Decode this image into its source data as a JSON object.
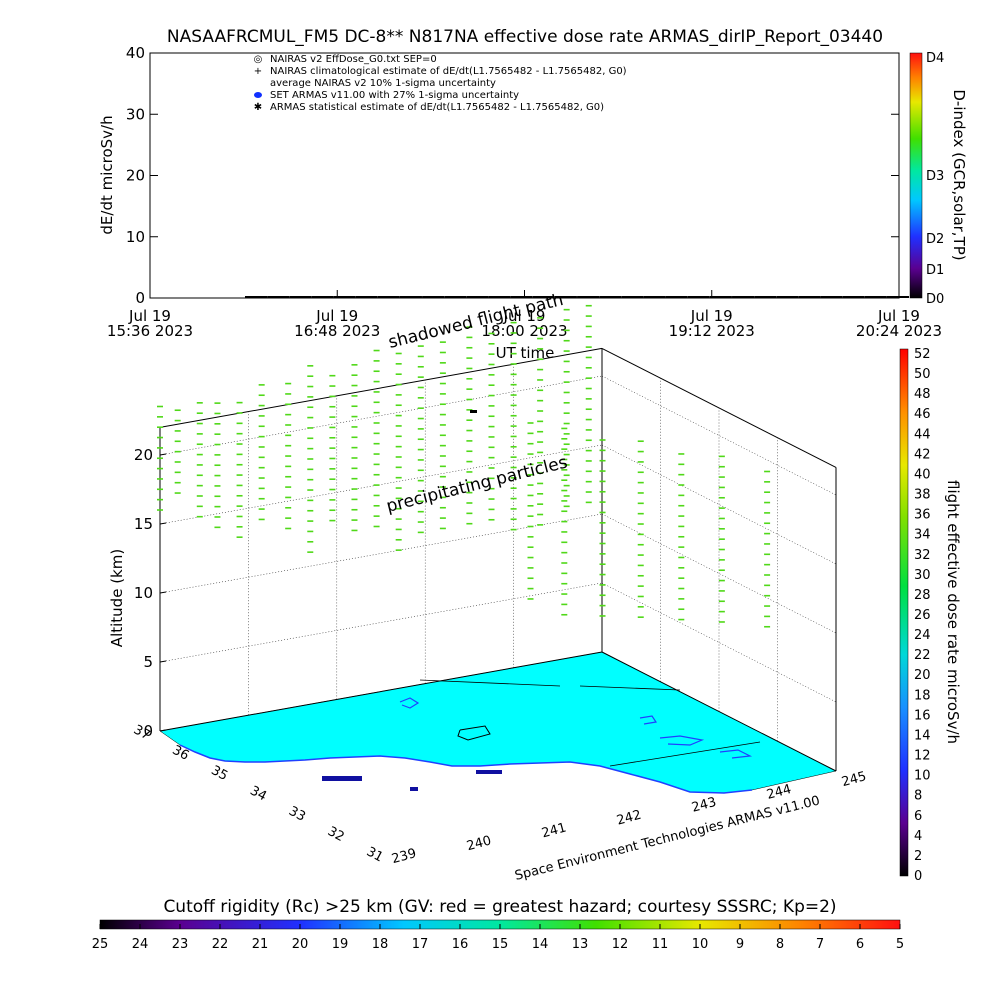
{
  "chart_data": [
    {
      "type": "line",
      "title": "NASAAFRCMUL_FM5 DC-8** N817NA effective dose rate ARMAS_dirIP_Report_03440",
      "ylabel": "dE/dt microSv/h",
      "xlabel": "UT time",
      "ylim": [
        0,
        40
      ],
      "y_ticks": [
        "0",
        "10",
        "20",
        "30",
        "40"
      ],
      "x_ticks": [
        {
          "date": "Jul 19",
          "time": "15:36 2023"
        },
        {
          "date": "Jul 19",
          "time": "16:48 2023"
        },
        {
          "date": "Jul 19",
          "time": "18:00 2023"
        },
        {
          "date": "Jul 19",
          "time": "19:12 2023"
        },
        {
          "date": "Jul 19",
          "time": "20:24 2023"
        }
      ],
      "legend": [
        "NAIRAS v2 EffDose_G0.txt SEP=0",
        "NAIRAS climatological estimate of dE/dt(L1.7565482 - L1.7565482, G0)",
        "average NAIRAS v2 10% 1-sigma uncertainty",
        "SET ARMAS v11.00 with 27% 1-sigma uncertainty",
        "ARMAS statistical estimate of dE/dt(L1.7565482 - L1.7565482, G0)"
      ],
      "legend_symbols": [
        "◎",
        "+",
        "",
        "●",
        "✱"
      ],
      "series": [
        {
          "values": [
            0,
            0,
            0,
            0,
            0,
            0,
            0,
            0,
            0,
            0,
            0,
            0,
            0,
            0,
            0,
            0,
            0,
            0,
            0,
            0,
            0,
            0,
            0,
            0,
            0,
            0,
            0,
            0,
            0,
            0
          ]
        }
      ],
      "colorbar": {
        "label": "D-index (GCR,solar,TP)",
        "ticks": [
          "D0",
          "D1",
          "D2",
          "D3",
          "D4"
        ]
      }
    },
    {
      "type": "scatter",
      "ylabel": "Altitude (km)",
      "z_ticks": [
        "0",
        "5",
        "10",
        "15",
        "20"
      ],
      "depth_ticks": [
        "31",
        "32",
        "33",
        "34",
        "35",
        "36",
        "37"
      ],
      "x_ticks": [
        "239",
        "240",
        "241",
        "242",
        "243",
        "244",
        "245"
      ],
      "annotations": [
        "shadowed flight path",
        "precipitating particles"
      ],
      "credit": "Space Environment Technologies ARMAS v11.00",
      "colorbar": {
        "label": "flight effective dose rate microSv/h",
        "ticks": [
          "0",
          "2",
          "4",
          "6",
          "8",
          "10",
          "12",
          "14",
          "16",
          "18",
          "20",
          "22",
          "24",
          "26",
          "28",
          "30",
          "32",
          "34",
          "36",
          "38",
          "40",
          "42",
          "44",
          "46",
          "48",
          "50",
          "52"
        ]
      },
      "precipitation_columns": [
        {
          "t": 0.0,
          "d": 0.0,
          "z0": 16,
          "z1": 23.5
        },
        {
          "t": 0.04,
          "d": 0.0,
          "z0": 17,
          "z1": 23.5
        },
        {
          "t": 0.09,
          "d": 0.0,
          "z0": 15,
          "z1": 23.5
        },
        {
          "t": 0.13,
          "d": 0.0,
          "z0": 14,
          "z1": 23
        },
        {
          "t": 0.18,
          "d": 0.0,
          "z0": 13,
          "z1": 23
        },
        {
          "t": 0.23,
          "d": 0.0,
          "z0": 14,
          "z1": 24
        },
        {
          "t": 0.29,
          "d": 0.0,
          "z0": 13,
          "z1": 24
        },
        {
          "t": 0.34,
          "d": 0.0,
          "z0": 11,
          "z1": 24.5
        },
        {
          "t": 0.39,
          "d": 0.0,
          "z0": 13,
          "z1": 24
        },
        {
          "t": 0.44,
          "d": 0.0,
          "z0": 12,
          "z1": 24.5
        },
        {
          "t": 0.49,
          "d": 0.0,
          "z0": 12,
          "z1": 25
        },
        {
          "t": 0.54,
          "d": 0.0,
          "z0": 10,
          "z1": 24.5
        },
        {
          "t": 0.59,
          "d": 0.0,
          "z0": 11,
          "z1": 25
        },
        {
          "t": 0.64,
          "d": 0.0,
          "z0": 11,
          "z1": 25
        },
        {
          "t": 0.7,
          "d": 0.0,
          "z0": 11,
          "z1": 25.5
        },
        {
          "t": 0.75,
          "d": 0.0,
          "z0": 11,
          "z1": 25
        },
        {
          "t": 0.8,
          "d": 0.0,
          "z0": 10,
          "z1": 25.5
        },
        {
          "t": 0.86,
          "d": 0.0,
          "z0": 10,
          "z1": 25
        },
        {
          "t": 0.92,
          "d": 0.0,
          "z0": 11,
          "z1": 25.5
        },
        {
          "t": 0.97,
          "d": 0.0,
          "z0": 11,
          "z1": 25.5
        },
        {
          "t": 0.6,
          "d": 0.45,
          "z0": 10,
          "z1": 23
        },
        {
          "t": 0.65,
          "d": 0.5,
          "z0": 9,
          "z1": 22.5
        },
        {
          "t": 0.71,
          "d": 0.55,
          "z0": 9,
          "z1": 22
        },
        {
          "t": 0.77,
          "d": 0.6,
          "z0": 9,
          "z1": 22
        },
        {
          "t": 0.83,
          "d": 0.66,
          "z0": 9,
          "z1": 21.5
        },
        {
          "t": 0.89,
          "d": 0.72,
          "z0": 9,
          "z1": 21
        },
        {
          "t": 0.95,
          "d": 0.8,
          "z0": 9,
          "z1": 20.5
        }
      ]
    },
    {
      "type": "heatmap",
      "title": "Cutoff rigidity (Rc) >25 km (GV: red = greatest hazard; courtesy SSSRC; Kp=2)",
      "ticks": [
        "25",
        "24",
        "23",
        "22",
        "21",
        "20",
        "19",
        "18",
        "17",
        "16",
        "15",
        "14",
        "13",
        "12",
        "11",
        "10",
        "9",
        "8",
        "7",
        "6",
        "5"
      ]
    }
  ]
}
